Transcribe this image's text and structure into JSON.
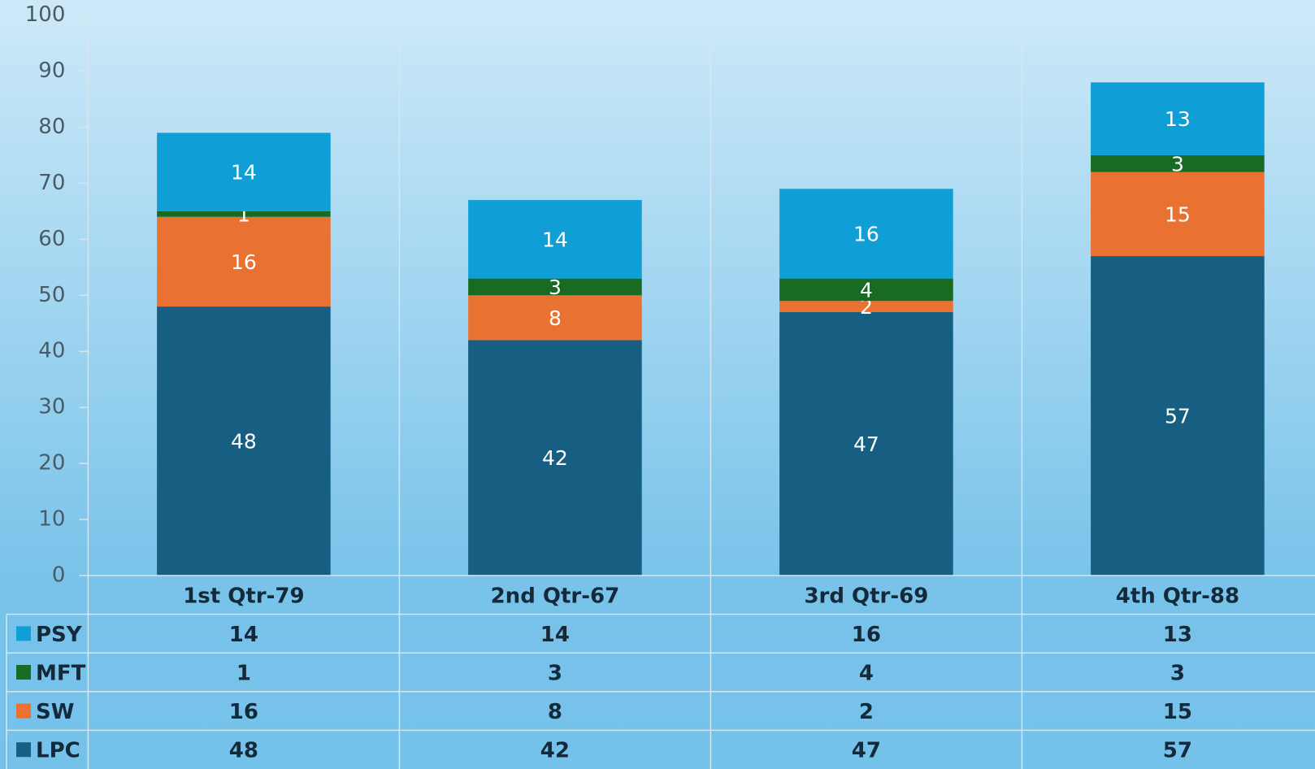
{
  "chart_data": {
    "type": "stacked_bar",
    "categories": [
      "1st Qtr-79",
      "2nd Qtr-67",
      "3rd Qtr-69",
      "4th Qtr-88"
    ],
    "series": [
      {
        "name": "PSY",
        "color": "#0f9ed5",
        "values": [
          14,
          14,
          16,
          13
        ]
      },
      {
        "name": "MFT",
        "color": "#196b24",
        "values": [
          1,
          3,
          4,
          3
        ]
      },
      {
        "name": "SW",
        "color": "#e97132",
        "values": [
          16,
          8,
          2,
          15
        ]
      },
      {
        "name": "LPC",
        "color": "#165f82",
        "values": [
          48,
          42,
          47,
          57
        ]
      }
    ],
    "ylim": [
      0,
      100
    ],
    "yticks": [
      0,
      10,
      20,
      30,
      40,
      50,
      60,
      70,
      80,
      90,
      100
    ],
    "data_table": true
  }
}
